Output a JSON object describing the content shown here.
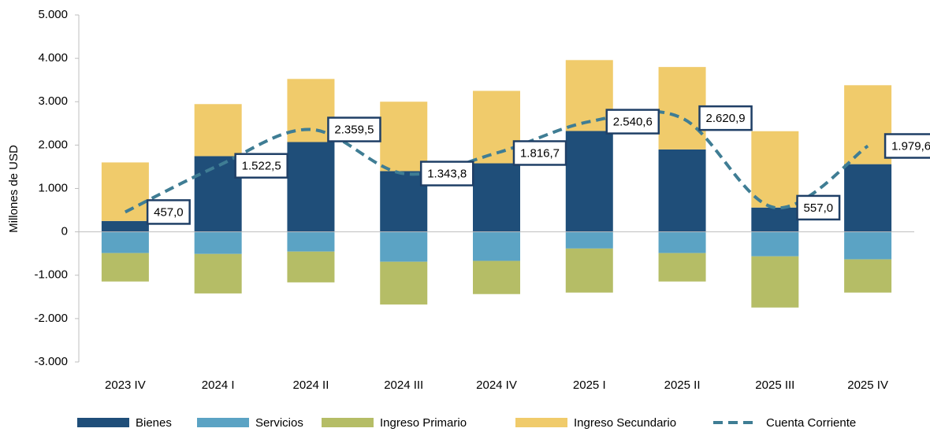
{
  "chart_data": {
    "type": "bar",
    "stacked": true,
    "y_label": "Millones de USD",
    "categories": [
      "2023 IV",
      "2024 I",
      "2024 II",
      "2024 III",
      "2024 IV",
      "2025 I",
      "2025 II",
      "2025 III",
      "2025 IV"
    ],
    "series": [
      {
        "name": "Bienes",
        "color": "#1f4e79",
        "type": "bar",
        "values": [
          250,
          1745,
          2070,
          1400,
          1580,
          2325,
          1900,
          560,
          1560
        ]
      },
      {
        "name": "Servicios",
        "color": "#5ba3c4",
        "type": "bar",
        "values": [
          -490,
          -510,
          -455,
          -690,
          -670,
          -385,
          -490,
          -565,
          -635
        ]
      },
      {
        "name": "Ingreso Primario",
        "color": "#b5bd66",
        "type": "bar",
        "values": [
          -655,
          -910,
          -710,
          -985,
          -765,
          -1015,
          -655,
          -1180,
          -765
        ]
      },
      {
        "name": "Ingreso Secundario",
        "color": "#f0cb6b",
        "type": "bar",
        "values": [
          1350,
          1200,
          1455,
          1600,
          1670,
          1635,
          1900,
          1760,
          1820
        ]
      },
      {
        "name": "Cuenta Corriente",
        "color": "#3f7d94",
        "type": "line",
        "dashed": true,
        "values": [
          457.0,
          1522.5,
          2359.5,
          1343.8,
          1816.7,
          2540.6,
          2620.9,
          557.0,
          1979.6
        ],
        "value_labels": [
          "457,0",
          "1.522,5",
          "2.359,5",
          "1.343,8",
          "1.816,7",
          "2.540,6",
          "2.620,9",
          "557,0",
          "1.979,6"
        ]
      }
    ],
    "ylim": [
      -3000,
      5000
    ],
    "yticks": [
      {
        "value": -3000,
        "label": "-3.000"
      },
      {
        "value": -2000,
        "label": "-2.000"
      },
      {
        "value": -1000,
        "label": "-1.000"
      },
      0,
      {
        "value": 1000,
        "label": "1.000"
      },
      {
        "value": 2000,
        "label": "2.000"
      },
      {
        "value": 3000,
        "label": "3.000"
      },
      {
        "value": 4000,
        "label": "4.000"
      },
      {
        "value": 5000,
        "label": "5.000"
      }
    ],
    "legend": "bottom"
  }
}
